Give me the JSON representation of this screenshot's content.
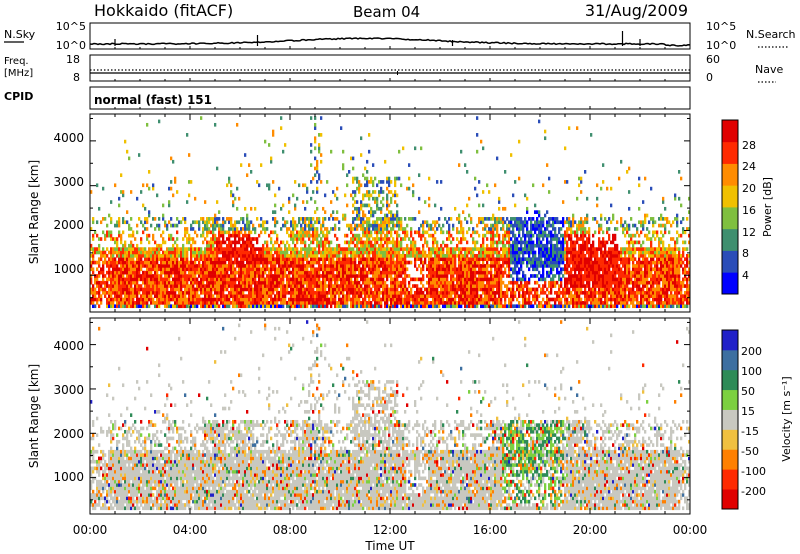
{
  "header": {
    "site": "Hokkaido (fitACF)",
    "beam": "Beam 04",
    "date": "31/Aug/2009"
  },
  "panels": {
    "nsky": {
      "label": "N.Sky",
      "ticks": [
        "10^5",
        "10^0"
      ],
      "right_label": "N.Search",
      "right_ticks": [
        "10^5",
        "10^0"
      ]
    },
    "freq": {
      "label_line1": "Freq.",
      "label_line2": "[MHz]",
      "ticks": [
        "18",
        "8"
      ],
      "right_label": "Nave",
      "right_ticks": [
        "60",
        "0"
      ]
    },
    "cpid": {
      "label": "CPID",
      "text": "normal (fast) 151"
    }
  },
  "chart_data": [
    {
      "type": "heatmap",
      "name": "power",
      "ylabel": "Slant Range [km]",
      "ylim": [
        180,
        4600
      ],
      "yticks": [
        "1000",
        "2000",
        "3000",
        "4000"
      ],
      "xlim": [
        0,
        24
      ],
      "colorbar": {
        "label": "Power [dB]",
        "ticks": [
          "4",
          "8",
          "12",
          "16",
          "20",
          "24",
          "28"
        ],
        "colors": [
          "#0000ff",
          "#2a4db8",
          "#3f8f6f",
          "#7fbf3f",
          "#f0c000",
          "#ff8c00",
          "#ff2a00",
          "#e00000"
        ]
      }
    },
    {
      "type": "heatmap",
      "name": "velocity",
      "ylabel": "Slant Range [km]",
      "ylim": [
        180,
        4600
      ],
      "yticks": [
        "1000",
        "2000",
        "3000",
        "4000"
      ],
      "xlim": [
        0,
        24
      ],
      "xticks": [
        "00:00",
        "04:00",
        "08:00",
        "12:00",
        "16:00",
        "20:00",
        "00:00"
      ],
      "xlabel": "Time UT",
      "colorbar": {
        "label": "Velocity [m s⁻¹]",
        "ticks": [
          "200",
          "100",
          "50",
          "15",
          "-15",
          "-50",
          "-100",
          "-200"
        ],
        "colors": [
          "#2020c8",
          "#3d6fa0",
          "#2e8b57",
          "#7cd040",
          "#c8c8c0",
          "#f0c040",
          "#ff8000",
          "#ff2a00",
          "#e00000"
        ]
      }
    }
  ]
}
